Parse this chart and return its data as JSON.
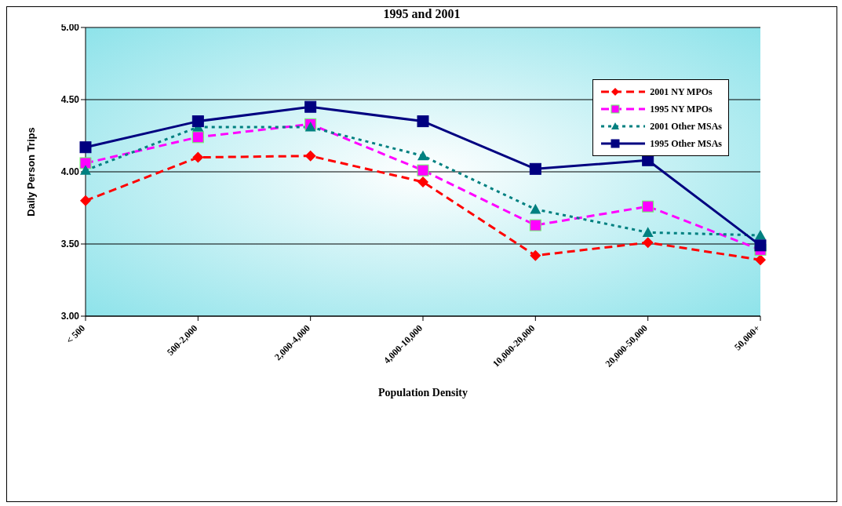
{
  "chart_data": {
    "type": "line",
    "title": "1995 and 2001",
    "xlabel": "Population Density",
    "ylabel": "Daily Person Trips",
    "categories": [
      "< 500",
      "500-2,000",
      "2,000-4,000",
      "4,000-10,000",
      "10,000-20,000",
      "20,000-50,000",
      "50,000+"
    ],
    "series": [
      {
        "name": "2001 NY MPOs",
        "color": "#ff0000",
        "marker": "diamond",
        "line_style": "dashed",
        "values": [
          3.8,
          4.1,
          4.11,
          3.93,
          3.42,
          3.51,
          3.39
        ]
      },
      {
        "name": "1995 NY MPOs",
        "color": "#ff00ff",
        "marker": "square",
        "line_style": "dashed",
        "values": [
          4.06,
          4.24,
          4.33,
          4.01,
          3.63,
          3.76,
          3.46
        ]
      },
      {
        "name": "2001 Other MSAs",
        "color": "#008080",
        "marker": "triangle",
        "line_style": "dotted",
        "values": [
          4.01,
          4.31,
          4.31,
          4.11,
          3.74,
          3.58,
          3.56
        ]
      },
      {
        "name": "1995 Other MSAs",
        "color": "#000080",
        "marker": "square",
        "line_style": "solid",
        "values": [
          4.17,
          4.35,
          4.45,
          4.35,
          4.02,
          4.08,
          3.49
        ]
      }
    ],
    "ylim": [
      3,
      5
    ],
    "yticks": [
      {
        "value": 3,
        "label": "3.00"
      },
      {
        "value": 3.5,
        "label": "3.50"
      },
      {
        "value": 4,
        "label": "4.00"
      },
      {
        "value": 4.5,
        "label": "4.50"
      },
      {
        "value": 5,
        "label": "5.00"
      }
    ],
    "grid": "y",
    "legend": "top right"
  }
}
